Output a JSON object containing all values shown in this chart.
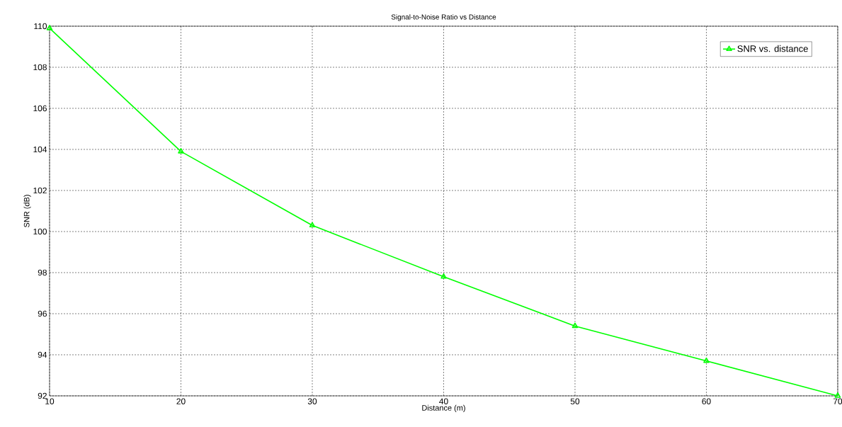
{
  "chart_data": {
    "type": "line",
    "title": "Signal-to-Noise Ratio vs Distance",
    "xlabel": "Distance (m)",
    "ylabel": "SNR (dB)",
    "x": [
      10,
      20,
      30,
      40,
      50,
      60,
      70
    ],
    "series": [
      {
        "name": "SNR vs. distance",
        "color": "#00ff00",
        "values": [
          109.9,
          103.9,
          100.3,
          97.8,
          95.4,
          93.7,
          92.0
        ]
      }
    ],
    "xlim": [
      10,
      70
    ],
    "ylim": [
      92,
      110
    ],
    "xticks": [
      10,
      20,
      30,
      40,
      50,
      60,
      70
    ],
    "yticks": [
      92,
      94,
      96,
      98,
      100,
      102,
      104,
      106,
      108,
      110
    ],
    "grid": true,
    "legend": "top right",
    "marker": "triangle",
    "line_style": "solid"
  }
}
